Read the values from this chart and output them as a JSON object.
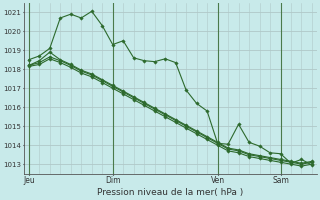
{
  "background_color": "#c8eaea",
  "grid_color": "#b0c8c8",
  "line_color": "#2d6a2d",
  "vline_color": "#4a7a4a",
  "title": "Pression niveau de la mer( hPa )",
  "ylim": [
    1012.5,
    1021.5
  ],
  "yticks": [
    1013,
    1014,
    1015,
    1016,
    1017,
    1018,
    1019,
    1020,
    1021
  ],
  "day_labels": [
    "Jeu",
    "Dim",
    "Ven",
    "Sam"
  ],
  "day_positions": [
    0,
    8,
    18,
    24
  ],
  "n_points": 28,
  "lines": [
    [
      1018.5,
      1018.7,
      1019.1,
      1020.7,
      1020.9,
      1020.7,
      1021.05,
      1020.3,
      1019.3,
      1019.5,
      1018.6,
      1018.45,
      1018.4,
      1018.55,
      1018.35,
      1016.9,
      1016.2,
      1015.8,
      1014.1,
      1014.05,
      1015.1,
      1014.15,
      1013.95,
      1013.6,
      1013.55,
      1013.05,
      1013.25,
      1012.95
    ],
    [
      1018.2,
      1018.45,
      1018.9,
      1018.5,
      1018.25,
      1017.95,
      1017.75,
      1017.45,
      1017.15,
      1016.85,
      1016.55,
      1016.25,
      1015.95,
      1015.65,
      1015.35,
      1015.05,
      1014.75,
      1014.45,
      1014.15,
      1013.85,
      1013.75,
      1013.55,
      1013.45,
      1013.35,
      1013.25,
      1013.15,
      1013.05,
      1013.15
    ],
    [
      1018.2,
      1018.35,
      1018.65,
      1018.45,
      1018.2,
      1017.9,
      1017.7,
      1017.4,
      1017.1,
      1016.8,
      1016.5,
      1016.2,
      1015.9,
      1015.6,
      1015.3,
      1015.0,
      1014.7,
      1014.4,
      1014.1,
      1013.8,
      1013.7,
      1013.5,
      1013.4,
      1013.3,
      1013.2,
      1013.1,
      1013.0,
      1013.1
    ],
    [
      1018.15,
      1018.25,
      1018.55,
      1018.35,
      1018.1,
      1017.8,
      1017.6,
      1017.3,
      1017.0,
      1016.7,
      1016.4,
      1016.1,
      1015.8,
      1015.5,
      1015.2,
      1014.9,
      1014.6,
      1014.3,
      1014.0,
      1013.7,
      1013.6,
      1013.4,
      1013.3,
      1013.2,
      1013.1,
      1013.0,
      1012.9,
      1013.0
    ]
  ]
}
